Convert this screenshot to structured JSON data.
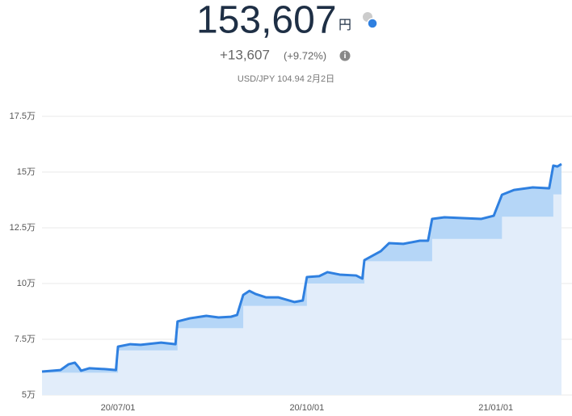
{
  "header": {
    "value": "153,607",
    "unit": "円",
    "change": "+13,607",
    "change_pct": "(+9.72%)",
    "rate": "USD/JPY 104.94 2月2日"
  },
  "chart_data": {
    "type": "line",
    "x": [
      "2020-05-25",
      "2020-06-03",
      "2020-06-07",
      "2020-06-10",
      "2020-06-12",
      "2020-06-13",
      "2020-06-17",
      "2020-06-25",
      "2020-06-30",
      "2020-07-01",
      "2020-07-07",
      "2020-07-12",
      "2020-07-22",
      "2020-07-29",
      "2020-07-30",
      "2020-08-05",
      "2020-08-13",
      "2020-08-19",
      "2020-08-25",
      "2020-08-28",
      "2020-08-31",
      "2020-09-03",
      "2020-09-06",
      "2020-09-11",
      "2020-09-17",
      "2020-09-25",
      "2020-09-29",
      "2020-10-01",
      "2020-10-07",
      "2020-10-11",
      "2020-10-17",
      "2020-10-25",
      "2020-10-28",
      "2020-10-29",
      "2020-11-06",
      "2020-11-10",
      "2020-11-17",
      "2020-11-25",
      "2020-11-29",
      "2020-12-01",
      "2020-12-07",
      "2020-12-17",
      "2020-12-25",
      "2020-12-31",
      "2021-01-04",
      "2021-01-10",
      "2021-01-19",
      "2021-01-27",
      "2021-01-29",
      "2021-01-31",
      "2021-02-02"
    ],
    "series": [
      {
        "color": "#2f80e0",
        "values": [
          60500,
          61200,
          63800,
          64500,
          62300,
          60900,
          62000,
          61600,
          61200,
          71700,
          72800,
          72500,
          73500,
          72800,
          83000,
          84400,
          85500,
          84800,
          85100,
          85900,
          94900,
          96700,
          95300,
          93800,
          93800,
          91700,
          92400,
          102900,
          103300,
          105100,
          104000,
          103600,
          102200,
          110500,
          114500,
          118100,
          117800,
          119200,
          119200,
          129000,
          129700,
          129300,
          129000,
          130400,
          139800,
          142000,
          143100,
          142700,
          152900,
          152500,
          153607
        ]
      },
      {
        "color": "#e2edfa",
        "values": [
          60000,
          60000,
          60000,
          60000,
          60000,
          60000,
          60000,
          60000,
          60000,
          70000,
          70000,
          70000,
          70000,
          70000,
          80000,
          80000,
          80000,
          80000,
          80000,
          80000,
          90000,
          90000,
          90000,
          90000,
          90000,
          90000,
          90000,
          100000,
          100000,
          100000,
          100000,
          100000,
          100000,
          110000,
          110000,
          110000,
          110000,
          110000,
          110000,
          120000,
          120000,
          120000,
          120000,
          120000,
          130000,
          130000,
          130000,
          130000,
          140000,
          140000,
          140000
        ]
      }
    ],
    "xlim": [
      "2020-05-25",
      "2021-02-02"
    ],
    "xticks": [
      {
        "value": "2020-07-01",
        "label": "20/07/01"
      },
      {
        "value": "2020-10-01",
        "label": "20/10/01"
      },
      {
        "value": "2021-01-01",
        "label": "21/01/01"
      }
    ],
    "ylim": [
      50000,
      175000
    ],
    "yticks": [
      {
        "value": 50000,
        "label": "5万"
      },
      {
        "value": 75000,
        "label": "7.5万"
      },
      {
        "value": 100000,
        "label": "10万"
      },
      {
        "value": 125000,
        "label": "12.5万"
      },
      {
        "value": 150000,
        "label": "15万"
      },
      {
        "value": 175000,
        "label": "17.5万"
      }
    ],
    "grid": true
  }
}
